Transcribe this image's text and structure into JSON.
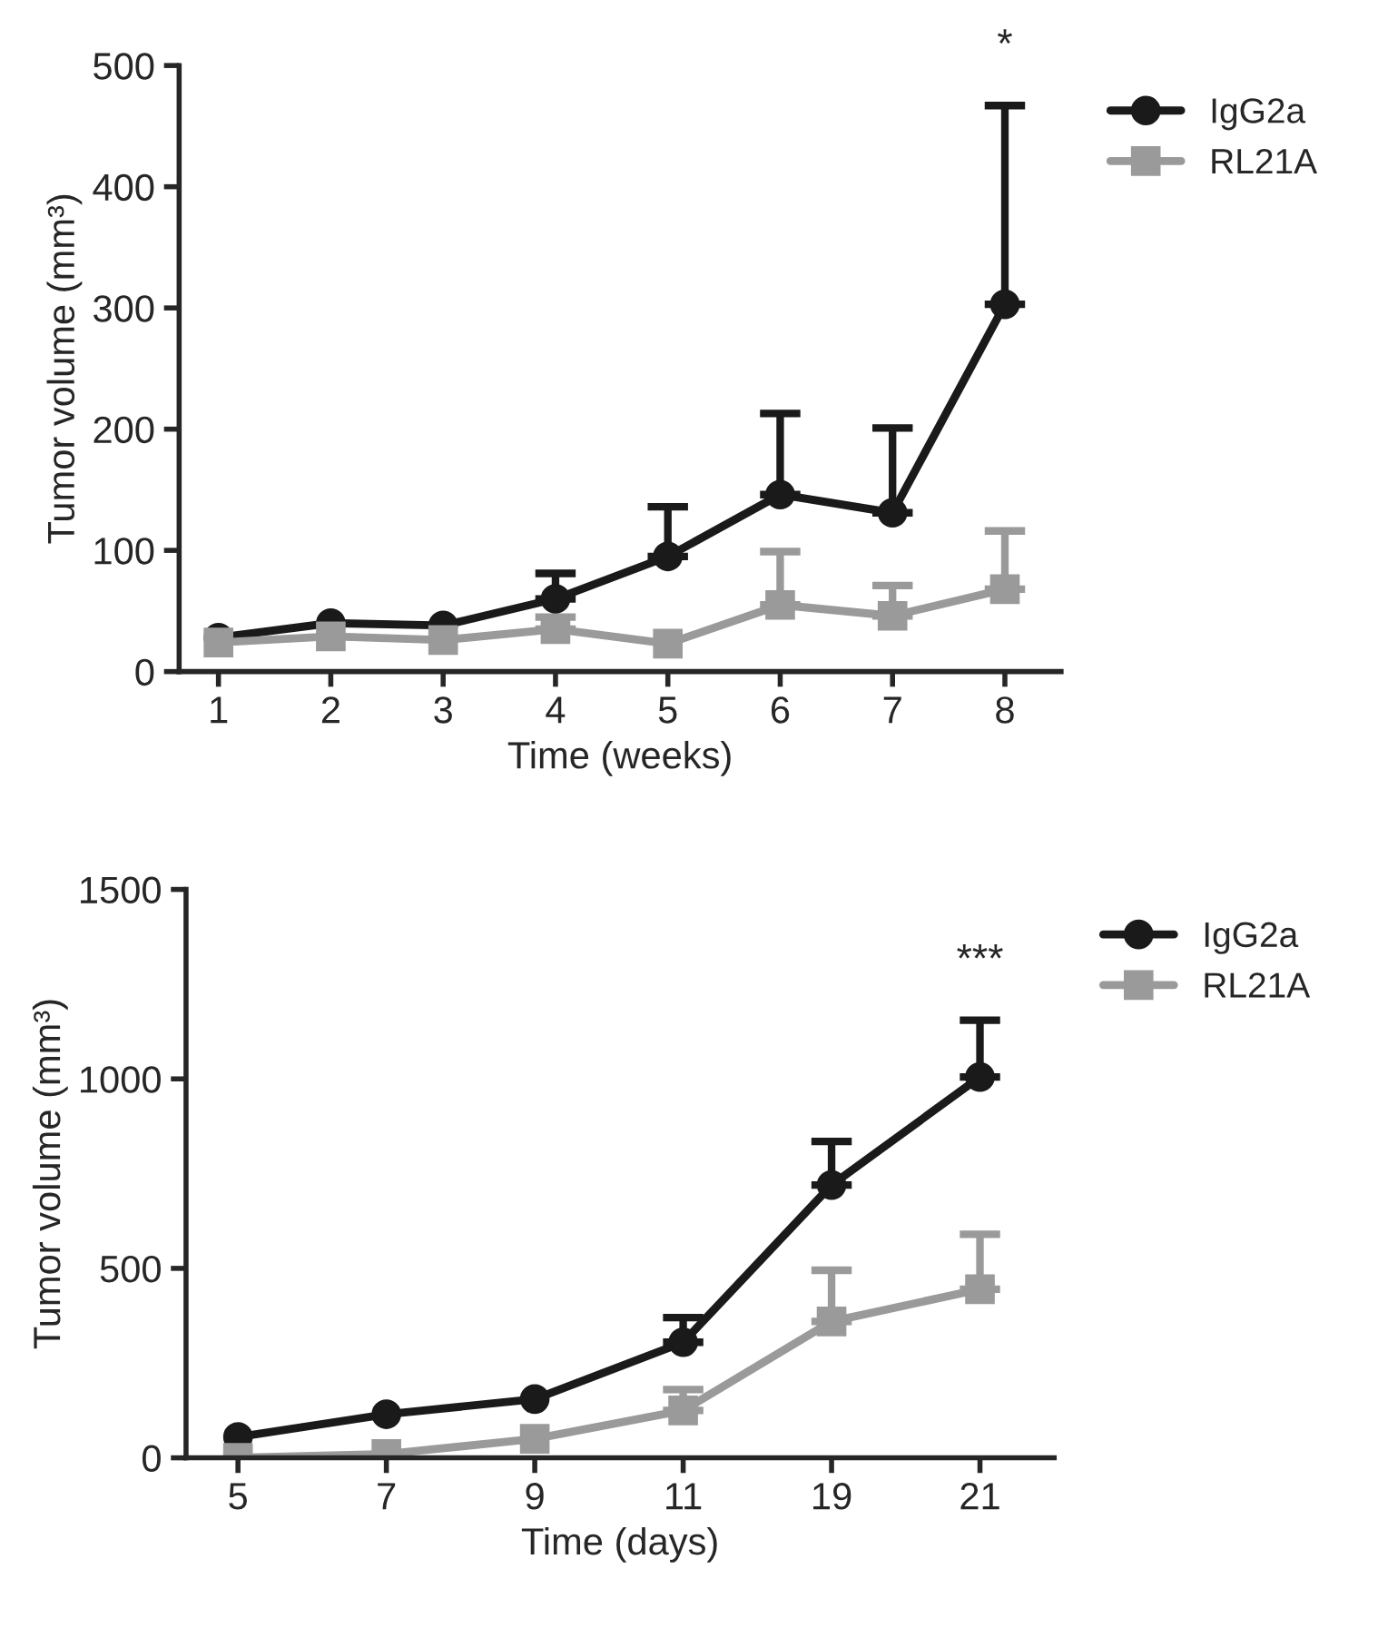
{
  "chart_data": [
    {
      "type": "line",
      "categories": [
        "1",
        "2",
        "3",
        "4",
        "5",
        "6",
        "7",
        "8"
      ],
      "xlabel": "Time (weeks)",
      "ylabel": "Tumor volume (mm³)",
      "ylim": [
        0,
        500
      ],
      "yticks": [
        0,
        100,
        200,
        300,
        400,
        500
      ],
      "legend": "top right",
      "grid": false,
      "series": [
        {
          "name": "IgG2a",
          "color": "#1a1a1a",
          "marker": "circle",
          "values": [
            28,
            40,
            38,
            60,
            95,
            146,
            131,
            303
          ],
          "errors": [
            null,
            null,
            null,
            [
              60,
              81
            ],
            [
              95,
              136
            ],
            [
              146,
              213
            ],
            [
              131,
              201
            ],
            [
              303,
              467
            ]
          ]
        },
        {
          "name": "RL21A",
          "color": "#9a9a9a",
          "marker": "square",
          "values": [
            24,
            29,
            26,
            35,
            23,
            55,
            46,
            68
          ],
          "errors": [
            null,
            null,
            null,
            [
              35,
              45
            ],
            null,
            [
              55,
              99
            ],
            [
              46,
              71
            ],
            [
              68,
              116
            ]
          ]
        }
      ],
      "annotations": [
        "*"
      ]
    },
    {
      "type": "line",
      "categories": [
        "5",
        "7",
        "9",
        "11",
        "19",
        "21"
      ],
      "xlabel": "Time (days)",
      "ylabel": "Tumor volume (mm³)",
      "ylim": [
        0,
        1500
      ],
      "yticks": [
        0,
        500,
        1000,
        1500
      ],
      "legend": "top right",
      "grid": false,
      "series": [
        {
          "name": "IgG2a",
          "color": "#1a1a1a",
          "marker": "circle",
          "values": [
            55,
            115,
            155,
            305,
            720,
            1005
          ],
          "errors": [
            null,
            null,
            null,
            [
              305,
              370
            ],
            [
              720,
              835
            ],
            [
              1005,
              1155
            ]
          ]
        },
        {
          "name": "RL21A",
          "color": "#9a9a9a",
          "marker": "square",
          "values": [
            0,
            10,
            50,
            125,
            360,
            445
          ],
          "errors": [
            null,
            null,
            null,
            [
              125,
              180
            ],
            [
              360,
              495
            ],
            [
              445,
              590
            ]
          ]
        }
      ],
      "annotations": [
        "***"
      ]
    }
  ]
}
